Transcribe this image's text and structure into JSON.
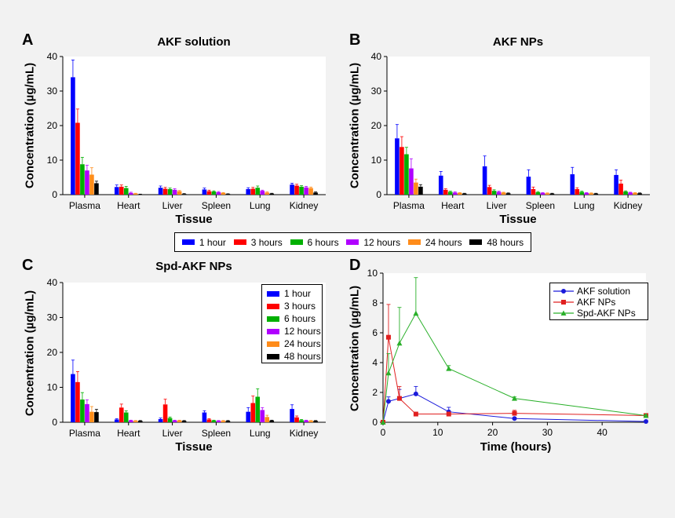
{
  "figure": {
    "labels": {
      "a": "A",
      "b": "B",
      "c": "C",
      "d": "D"
    },
    "colors": {
      "1 hour": "#0000ff",
      "3 hours": "#ff0000",
      "6 hours": "#00b000",
      "12 hours": "#b000ff",
      "24 hours": "#ff8c1a",
      "48 hours": "#000000"
    },
    "shared_legend": [
      "1 hour",
      "3 hours",
      "6 hours",
      "12 hours",
      "24 hours",
      "48 hours"
    ]
  },
  "chart_data": [
    {
      "type": "bar",
      "title": "AKF solution",
      "xlabel": "Tissue",
      "ylabel": "Concentration (µg/mL)",
      "ylim": [
        0,
        40
      ],
      "yticks": [
        0,
        10,
        20,
        30,
        40
      ],
      "categories": [
        "Plasma",
        "Heart",
        "Liver",
        "Spleen",
        "Lung",
        "Kidney"
      ],
      "series": [
        {
          "name": "1 hour",
          "values": [
            34,
            2.2,
            2.0,
            1.5,
            1.6,
            2.9
          ],
          "errors": [
            5,
            0.6,
            0.5,
            0.4,
            0.4,
            0.4
          ]
        },
        {
          "name": "3 hours",
          "values": [
            20.8,
            2.3,
            1.7,
            1.0,
            1.7,
            2.6
          ],
          "errors": [
            4,
            0.5,
            0.4,
            0.3,
            0.4,
            0.4
          ]
        },
        {
          "name": "6 hours",
          "values": [
            8.8,
            1.9,
            1.6,
            0.9,
            2.0,
            2.3
          ],
          "errors": [
            2,
            0.5,
            0.3,
            0.2,
            0.5,
            0.3
          ]
        },
        {
          "name": "12 hours",
          "values": [
            7,
            0.5,
            1.4,
            0.7,
            1.1,
            2.1
          ],
          "errors": [
            1.5,
            0.2,
            0.3,
            0.2,
            0.2,
            0.3
          ]
        },
        {
          "name": "24 hours",
          "values": [
            5.8,
            0.3,
            1.0,
            0.5,
            0.6,
            1.9
          ],
          "errors": [
            2,
            0.1,
            0.2,
            0.1,
            0.2,
            0.3
          ]
        },
        {
          "name": "48 hours",
          "values": [
            3.3,
            0.1,
            0.2,
            0.2,
            0.3,
            0.6
          ],
          "errors": [
            0.6,
            0.05,
            0.1,
            0.05,
            0.1,
            0.2
          ]
        }
      ]
    },
    {
      "type": "bar",
      "title": "AKF NPs",
      "xlabel": "Tissue",
      "ylabel": "Concentration (µg/mL)",
      "ylim": [
        0,
        40
      ],
      "yticks": [
        0,
        10,
        20,
        30,
        40
      ],
      "categories": [
        "Plasma",
        "Heart",
        "Liver",
        "Spleen",
        "Lung",
        "Kidney"
      ],
      "series": [
        {
          "name": "1 hour",
          "values": [
            16.3,
            5.5,
            8.2,
            5.2,
            5.9,
            5.7
          ],
          "errors": [
            4,
            1.2,
            3,
            2,
            2,
            1.5
          ]
        },
        {
          "name": "3 hours",
          "values": [
            13.8,
            1.4,
            2.2,
            1.6,
            1.6,
            3.2
          ],
          "errors": [
            3,
            0.3,
            0.5,
            0.6,
            0.4,
            1
          ]
        },
        {
          "name": "6 hours",
          "values": [
            11.7,
            0.8,
            1.1,
            0.7,
            0.8,
            0.9
          ],
          "errors": [
            2,
            0.2,
            0.3,
            0.2,
            0.2,
            0.2
          ]
        },
        {
          "name": "12 hours",
          "values": [
            7.6,
            0.6,
            0.8,
            0.5,
            0.5,
            0.6
          ],
          "errors": [
            2.8,
            0.2,
            0.2,
            0.1,
            0.1,
            0.1
          ]
        },
        {
          "name": "24 hours",
          "values": [
            3.5,
            0.5,
            0.6,
            0.4,
            0.4,
            0.5
          ],
          "errors": [
            1,
            0.1,
            0.1,
            0.1,
            0.1,
            0.1
          ]
        },
        {
          "name": "48 hours",
          "values": [
            2.3,
            0.3,
            0.4,
            0.3,
            0.3,
            0.4
          ],
          "errors": [
            0.6,
            0.1,
            0.1,
            0.1,
            0.1,
            0.1
          ]
        }
      ]
    },
    {
      "type": "bar",
      "title": "Spd-AKF NPs",
      "xlabel": "Tissue",
      "ylabel": "Concentration (µg/mL)",
      "ylim": [
        0,
        40
      ],
      "yticks": [
        0,
        10,
        20,
        30,
        40
      ],
      "categories": [
        "Plasma",
        "Heart",
        "Liver",
        "Spleen",
        "Lung",
        "Kidney"
      ],
      "legend": [
        "1 hour",
        "3 hours",
        "6 hours",
        "12 hours",
        "24 hours",
        "48 hours"
      ],
      "series": [
        {
          "name": "1 hour",
          "values": [
            13.8,
            0.8,
            0.9,
            2.8,
            3.0,
            3.8
          ],
          "errors": [
            4,
            0.2,
            0.3,
            0.5,
            1.2,
            1.2
          ]
        },
        {
          "name": "3 hours",
          "values": [
            11.5,
            4.2,
            5.1,
            0.8,
            5.5,
            1.4
          ],
          "errors": [
            3,
            1,
            1.5,
            0.2,
            2,
            0.4
          ]
        },
        {
          "name": "6 hours",
          "values": [
            6.5,
            2.8,
            1.2,
            0.5,
            7.3,
            0.6
          ],
          "errors": [
            2,
            0.5,
            0.3,
            0.1,
            2.3,
            0.2
          ]
        },
        {
          "name": "12 hours",
          "values": [
            5.2,
            0.5,
            0.5,
            0.4,
            3.5,
            0.5
          ],
          "errors": [
            1.2,
            0.1,
            0.1,
            0.1,
            0.7,
            0.1
          ]
        },
        {
          "name": "24 hours",
          "values": [
            3.0,
            0.4,
            0.5,
            0.4,
            1.5,
            0.4
          ],
          "errors": [
            1.5,
            0.1,
            0.1,
            0.1,
            0.5,
            0.1
          ]
        },
        {
          "name": "48 hours",
          "values": [
            2.9,
            0.4,
            0.4,
            0.4,
            0.5,
            0.4
          ],
          "errors": [
            0.8,
            0.1,
            0.1,
            0.1,
            0.1,
            0.1
          ]
        }
      ]
    },
    {
      "type": "line",
      "title": "",
      "xlabel": "Time (hours)",
      "ylabel": "Concentration (µg/mL)",
      "xlim": [
        0,
        48
      ],
      "ylim": [
        0,
        10
      ],
      "xticks": [
        0,
        10,
        20,
        30,
        40
      ],
      "yticks": [
        0,
        2,
        4,
        6,
        8,
        10
      ],
      "legend": [
        "AKF solution",
        "AKF NPs",
        "Spd-AKF NPs"
      ],
      "series": [
        {
          "name": "AKF solution",
          "color": "#1a1adb",
          "marker": "circle",
          "x": [
            0,
            1,
            3,
            6,
            12,
            24,
            48
          ],
          "y": [
            0,
            1.4,
            1.6,
            1.9,
            0.7,
            0.25,
            0.05
          ],
          "errors": [
            0,
            0.3,
            0.6,
            0.5,
            0.3,
            0.05,
            0.02
          ]
        },
        {
          "name": "AKF NPs",
          "color": "#e02020",
          "marker": "square",
          "x": [
            0,
            1,
            3,
            6,
            12,
            24,
            48
          ],
          "y": [
            0,
            5.7,
            1.6,
            0.55,
            0.55,
            0.6,
            0.45
          ],
          "errors": [
            0,
            2.2,
            0.8,
            0.1,
            0.1,
            0.2,
            0.1
          ]
        },
        {
          "name": "Spd-AKF NPs",
          "color": "#2ab02a",
          "marker": "triangle",
          "x": [
            0,
            1,
            3,
            6,
            12,
            24,
            48
          ],
          "y": [
            0,
            3.3,
            5.3,
            7.3,
            3.6,
            1.6,
            0.45
          ],
          "errors": [
            0,
            1.3,
            2.4,
            2.4,
            0.2,
            0.1,
            0.05
          ]
        }
      ]
    }
  ]
}
